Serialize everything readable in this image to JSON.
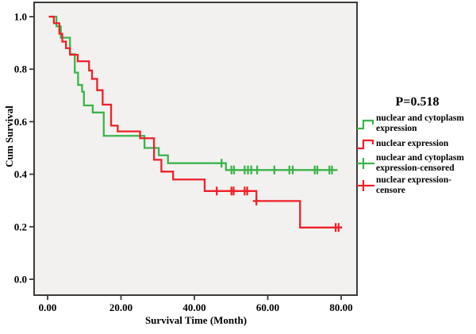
{
  "chart_data": {
    "type": "line",
    "subtype": "kaplan-meier-step",
    "title": "",
    "xlabel": "Survival Time (Month)",
    "ylabel": "Cum Survival",
    "annotation": "P=0.518",
    "grid": false,
    "legend_position": "right",
    "plot_bg": "#f2f1ef",
    "frame_color": "#3a3a3a",
    "xlim": [
      -3.68,
      84.32
    ],
    "ylim": [
      -0.0604,
      1.0544
    ],
    "x_ticks": {
      "values": [
        0,
        20,
        40,
        60,
        80
      ],
      "labels": [
        "0.00",
        "20.00",
        "40.00",
        "60.00",
        "80.00"
      ]
    },
    "y_ticks": {
      "values": [
        0.0,
        0.2,
        0.4,
        0.6,
        0.8,
        1.0
      ],
      "labels": [
        "0.0",
        "0.2",
        "0.4",
        "0.6",
        "0.8",
        "1.0"
      ]
    },
    "series": [
      {
        "name": "nuclear and cytoplasm expression",
        "color": "#3cb44c",
        "type": "step",
        "end": 79,
        "steps": [
          [
            0.6,
            1.0
          ],
          [
            2.4,
            0.963
          ],
          [
            3.6,
            0.92
          ],
          [
            6.1,
            0.857
          ],
          [
            7.4,
            0.787
          ],
          [
            8.3,
            0.74
          ],
          [
            9.4,
            0.714
          ],
          [
            9.9,
            0.662
          ],
          [
            12.3,
            0.635
          ],
          [
            15.3,
            0.546
          ],
          [
            26.4,
            0.5
          ],
          [
            30.3,
            0.472
          ],
          [
            32.8,
            0.442
          ],
          [
            48.6,
            0.416
          ]
        ]
      },
      {
        "name": "nuclear expression",
        "color": "#ee2129",
        "type": "step",
        "end": 80.2,
        "steps": [
          [
            0.3,
            1.0
          ],
          [
            1.7,
            0.975
          ],
          [
            3.2,
            0.935
          ],
          [
            4.0,
            0.905
          ],
          [
            5.0,
            0.88
          ],
          [
            6.1,
            0.855
          ],
          [
            8.2,
            0.83
          ],
          [
            11.3,
            0.795
          ],
          [
            12.1,
            0.763
          ],
          [
            13.5,
            0.72
          ],
          [
            15.0,
            0.665
          ],
          [
            17.3,
            0.585
          ],
          [
            19.1,
            0.563
          ],
          [
            25.2,
            0.537
          ],
          [
            29.0,
            0.455
          ],
          [
            31.0,
            0.41
          ],
          [
            34.2,
            0.38
          ],
          [
            42.8,
            0.336
          ],
          [
            56.9,
            0.298
          ],
          [
            68.8,
            0.197
          ]
        ]
      },
      {
        "name": "nuclear and cytoplasm expression-censored",
        "color": "#3cb44c",
        "type": "censor",
        "points": [
          [
            47.4,
            0.442
          ],
          [
            50.1,
            0.416
          ],
          [
            50.8,
            0.416
          ],
          [
            53.7,
            0.416
          ],
          [
            54.6,
            0.416
          ],
          [
            55.5,
            0.416
          ],
          [
            57.1,
            0.416
          ],
          [
            61.8,
            0.416
          ],
          [
            65.9,
            0.416
          ],
          [
            66.8,
            0.416
          ],
          [
            72.8,
            0.416
          ],
          [
            73.5,
            0.416
          ],
          [
            76.8,
            0.416
          ],
          [
            77.5,
            0.416
          ]
        ]
      },
      {
        "name": "nuclear expression-censore",
        "color": "#ee2129",
        "type": "censor",
        "points": [
          [
            46.1,
            0.336
          ],
          [
            50.1,
            0.336
          ],
          [
            50.7,
            0.336
          ],
          [
            53.7,
            0.336
          ],
          [
            54.4,
            0.336
          ],
          [
            56.9,
            0.298
          ],
          [
            78.5,
            0.197
          ],
          [
            79.3,
            0.197
          ]
        ]
      }
    ],
    "legend": {
      "items": [
        {
          "label": "nuclear and cytoplasm expression",
          "swatch": "step",
          "color": "#3cb44c"
        },
        {
          "label": "nuclear expression",
          "swatch": "step",
          "color": "#ee2129"
        },
        {
          "label": "nuclear and cytoplasm expression-censored",
          "swatch": "plus",
          "color": "#3cb44c"
        },
        {
          "label": "nuclear expression-censore",
          "swatch": "plus",
          "color": "#ee2129"
        }
      ]
    }
  }
}
